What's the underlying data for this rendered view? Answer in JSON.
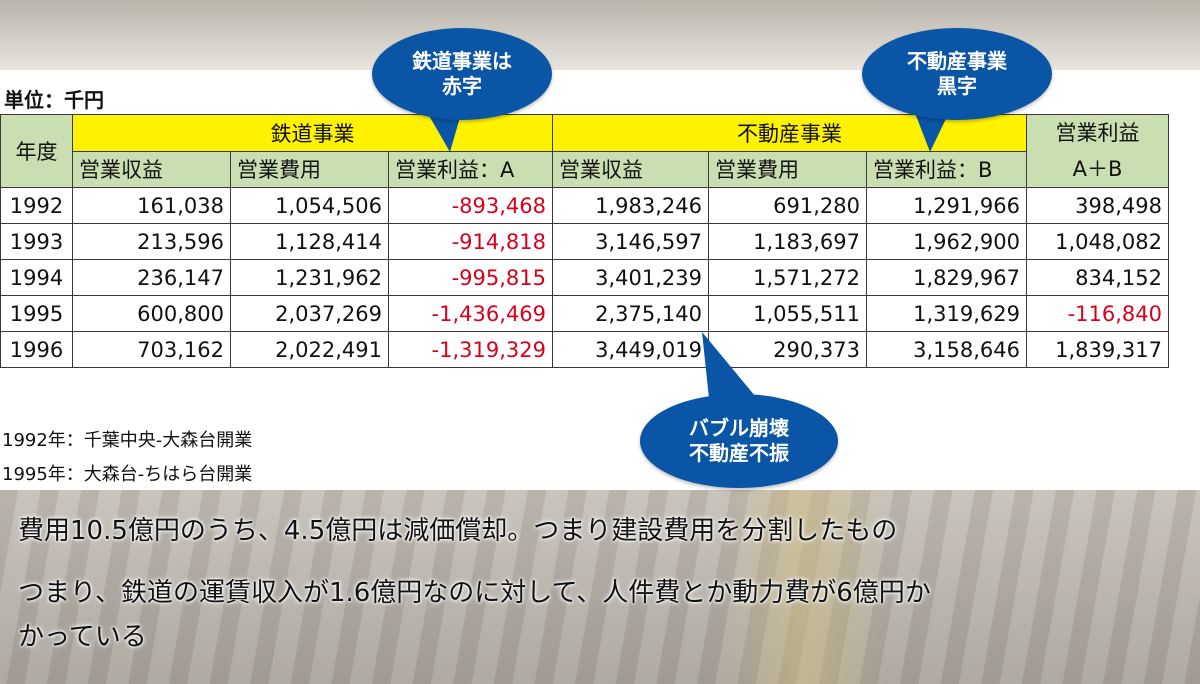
{
  "unit_label": "単位：千円",
  "table": {
    "year_header": "年度",
    "groups": {
      "railway": "鉄道事業",
      "realestate": "不動産事業",
      "total_line1": "営業利益",
      "total_line2": "A＋B"
    },
    "subheaders": [
      "営業収益",
      "営業費用",
      "営業利益：A",
      "営業収益",
      "営業費用",
      "営業利益：B"
    ],
    "rows": [
      {
        "year": "1992",
        "r_rev": "161,038",
        "r_cost": "1,054,506",
        "r_profit": "-893,468",
        "e_rev": "1,983,246",
        "e_cost": "691,280",
        "e_profit": "1,291,966",
        "total": "398,498"
      },
      {
        "year": "1993",
        "r_rev": "213,596",
        "r_cost": "1,128,414",
        "r_profit": "-914,818",
        "e_rev": "3,146,597",
        "e_cost": "1,183,697",
        "e_profit": "1,962,900",
        "total": "1,048,082"
      },
      {
        "year": "1994",
        "r_rev": "236,147",
        "r_cost": "1,231,962",
        "r_profit": "-995,815",
        "e_rev": "3,401,239",
        "e_cost": "1,571,272",
        "e_profit": "1,829,967",
        "total": "834,152"
      },
      {
        "year": "1995",
        "r_rev": "600,800",
        "r_cost": "2,037,269",
        "r_profit": "-1,436,469",
        "e_rev": "2,375,140",
        "e_cost": "1,055,511",
        "e_profit": "1,319,629",
        "total": "-116,840"
      },
      {
        "year": "1996",
        "r_rev": "703,162",
        "r_cost": "2,022,491",
        "r_profit": "-1,319,329",
        "e_rev": "3,449,019",
        "e_cost": "290,373",
        "e_profit": "3,158,646",
        "total": "1,839,317"
      }
    ]
  },
  "bubbles": {
    "railway_line1": "鉄道事業は",
    "railway_line2": "赤字",
    "realestate_line1": "不動産事業",
    "realestate_line2": "黒字",
    "bubble_line1": "バブル崩壊",
    "bubble_line2": "不動産不振"
  },
  "notes": [
    "1992年：千葉中央-大森台開業",
    "1995年：大森台-ちはら台開業"
  ],
  "captions": [
    "費用10.5億円のうち、4.5億円は減価償却。つまり建設費用を分割したもの",
    "つまり、鉄道の運賃収入が1.6億円なのに対して、人件費とか動力費が6億円か",
    "かっている"
  ],
  "colors": {
    "header_yellow": "#fff200",
    "header_green": "#c9dfb2",
    "negative_red": "#d9001b",
    "bubble_blue": "#0a55a6"
  }
}
